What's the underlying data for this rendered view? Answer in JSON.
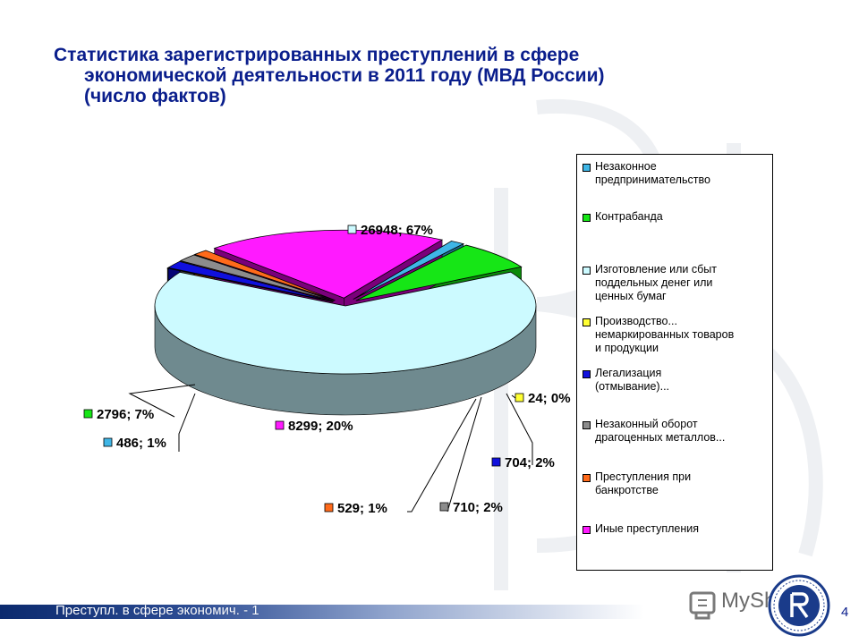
{
  "title": {
    "line1": "Статистика зарегистрированных преступлений в сфере",
    "line2": "экономической деятельности в 2011 году (МВД России)",
    "line3": "(число фактов)"
  },
  "chart_data": {
    "type": "pie",
    "title": "Статистика зарегистрированных преступлений в сфере экономической деятельности в 2011 году (МВД России) (число фактов)",
    "slices": [
      {
        "name": "Незаконное предпринимательство",
        "value": 486,
        "percent": 1,
        "label": "486; 1%",
        "color": "#3fb6e6",
        "side": "#1f6f8e"
      },
      {
        "name": "Контрабанда",
        "value": 2796,
        "percent": 7,
        "label": "2796; 7%",
        "color": "#16e616",
        "side": "#0a8a0a"
      },
      {
        "name": "Изготовление или сбыт поддельных денег или ценных бумаг",
        "value": 26948,
        "percent": 67,
        "label": "26948; 67%",
        "color": "#ccfaff",
        "side": "#6f8a8f"
      },
      {
        "name": "Производство... немаркированных товаров и продукции",
        "value": 24,
        "percent": 0,
        "label": "24; 0%",
        "color": "#ffff33",
        "side": "#9a9a10"
      },
      {
        "name": "Легализация (отмывание)...",
        "value": 704,
        "percent": 2,
        "label": "704; 2%",
        "color": "#1010dd",
        "side": "#050575"
      },
      {
        "name": "Незаконный оборот драгоценных металлов...",
        "value": 710,
        "percent": 2,
        "label": "710; 2%",
        "color": "#8c8c8c",
        "side": "#4a4a4a"
      },
      {
        "name": "Преступления при банкротстве",
        "value": 529,
        "percent": 1,
        "label": "529; 1%",
        "color": "#ff6a1a",
        "side": "#8a3a0a"
      },
      {
        "name": "Иные преступления",
        "value": 8299,
        "percent": 20,
        "label": "8299; 20%",
        "color": "#ff1aff",
        "side": "#7a007a"
      }
    ],
    "legend": "right"
  },
  "legend_items": [
    {
      "text": "Незаконное\nпредпринимательство",
      "color": "#3fb6e6"
    },
    {
      "text": "Контрабанда",
      "color": "#16e616"
    },
    {
      "text": "Изготовление или сбыт\nподдельных денег или\nценных бумаг",
      "color": "#ccfaff"
    },
    {
      "text": "Производство...\nнемаркированных товаров\nи продукции",
      "color": "#ffff33"
    },
    {
      "text": "Легализация\n(отмывание)...",
      "color": "#1010dd"
    },
    {
      "text": "Незаконный оборот\nдрагоценных металлов...",
      "color": "#8c8c8c"
    },
    {
      "text": "Преступления при\nбанкротстве",
      "color": "#ff6a1a"
    },
    {
      "text": "Иные преступления",
      "color": "#ff1aff"
    }
  ],
  "footer": {
    "text": "Преступл. в сфере экономич. - 1",
    "brand": "MyShared",
    "page": "4"
  }
}
